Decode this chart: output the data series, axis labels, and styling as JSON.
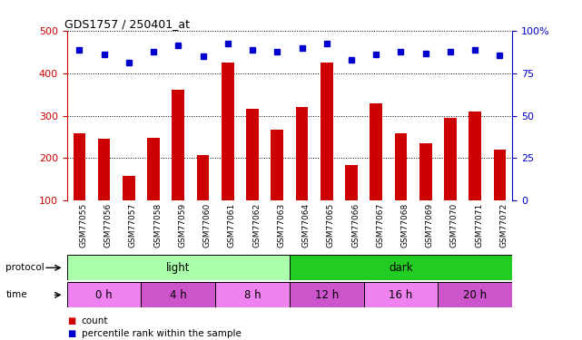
{
  "title": "GDS1757 / 250401_at",
  "samples": [
    "GSM77055",
    "GSM77056",
    "GSM77057",
    "GSM77058",
    "GSM77059",
    "GSM77060",
    "GSM77061",
    "GSM77062",
    "GSM77063",
    "GSM77064",
    "GSM77065",
    "GSM77066",
    "GSM77067",
    "GSM77068",
    "GSM77069",
    "GSM77070",
    "GSM77071",
    "GSM77072"
  ],
  "counts": [
    258,
    245,
    158,
    247,
    360,
    207,
    425,
    315,
    268,
    320,
    425,
    183,
    328,
    258,
    235,
    295,
    310,
    220
  ],
  "percentile_y_left_scale": [
    455,
    445,
    425,
    450,
    465,
    440,
    470,
    455,
    450,
    460,
    470,
    432,
    445,
    450,
    447,
    450,
    455,
    442
  ],
  "bar_color": "#cc0000",
  "dot_color": "#0000cc",
  "ylim_left": [
    100,
    500
  ],
  "yticks_left": [
    100,
    200,
    300,
    400,
    500
  ],
  "yticks_right": [
    0,
    25,
    50,
    75,
    100
  ],
  "ytick_right_labels": [
    "0",
    "25",
    "50",
    "75",
    "100%"
  ],
  "protocol_light_color": "#aaffaa",
  "protocol_dark_color": "#22cc22",
  "time_colors": [
    "#ee82ee",
    "#cc55cc",
    "#ee82ee",
    "#cc55cc",
    "#ee82ee",
    "#cc55cc"
  ],
  "time_labels": [
    "0 h",
    "4 h",
    "8 h",
    "12 h",
    "16 h",
    "20 h"
  ],
  "background_color": "#ffffff",
  "label_color_left": "#cc0000",
  "label_color_right": "#0000cc",
  "xtick_bg_color": "#c8c8c8",
  "n_light": 9,
  "n_dark": 9
}
